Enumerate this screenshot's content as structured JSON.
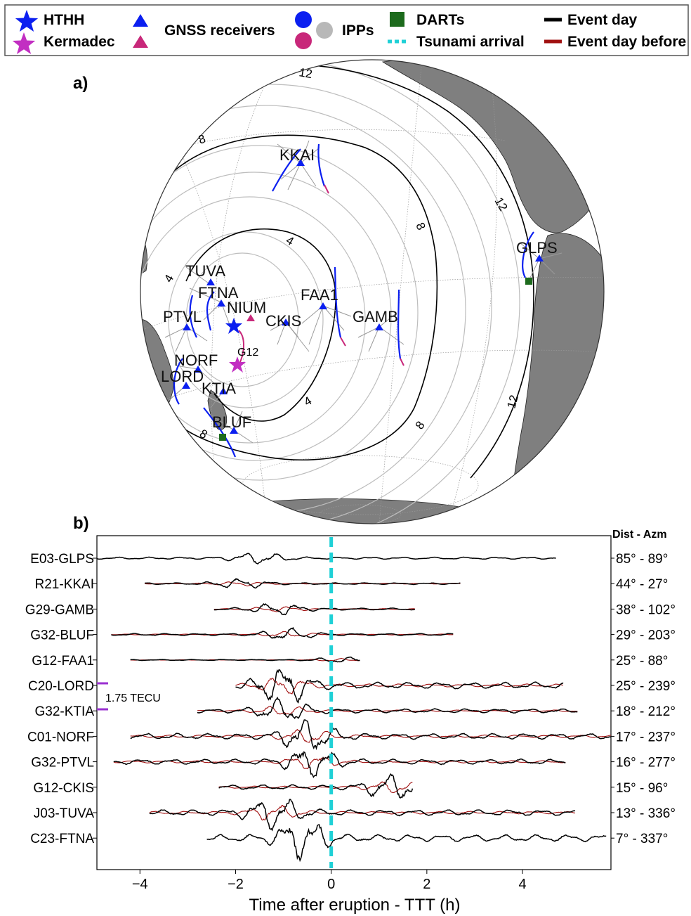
{
  "legend": {
    "items": [
      {
        "label": "HTHH",
        "marker": "star",
        "color": "#0b1ff0"
      },
      {
        "label": "Kermadec",
        "marker": "star",
        "color": "#c22fc2"
      },
      {
        "label": "GNSS receivers",
        "marker": "triangle",
        "colors": [
          "#0b1ff0",
          "#c8287a"
        ]
      },
      {
        "label": "IPPs",
        "marker": "circle",
        "colors": [
          "#0b1ff0",
          "#c8287a",
          "#b8b8b8"
        ]
      },
      {
        "label": "DARTs",
        "marker": "square",
        "color": "#1d6b1d"
      },
      {
        "label": "Tsunami arrival",
        "marker": "dashed-line",
        "color": "#1fd0d6"
      },
      {
        "label": "Event day",
        "marker": "line",
        "color": "#000000"
      },
      {
        "label": "Event day before",
        "marker": "line",
        "color": "#a01010"
      }
    ]
  },
  "panel_a": {
    "label": "a)",
    "contour_labels": [
      "12",
      "8",
      "12",
      "8",
      "4",
      "4",
      "4",
      "8",
      "12",
      "8"
    ],
    "stations": [
      "KKAI",
      "GLPS",
      "TUVA",
      "FTNA",
      "NIUM",
      "FAA1",
      "PTVL",
      "CKIS",
      "GAMB",
      "NORF",
      "LORD",
      "KTIA",
      "BLUF"
    ],
    "satellite_label": "G12",
    "colors": {
      "land": "#7f7f7f",
      "receiver": "#0b1ff0",
      "trace": "#0b1ff0",
      "contour": "#000000",
      "wavefront": "#b0b0b0",
      "dart": "#1d6b1d",
      "kermadec": "#c22fc2"
    }
  },
  "panel_b": {
    "label": "b)",
    "right_header": "Dist - Azm",
    "xlabel": "Time after eruption - TTT (h)",
    "scale_label": "1.75 TECU",
    "colors": {
      "event_day": "#000000",
      "day_before": "#a01010",
      "tsunami": "#1fd0d6",
      "scale_bar": "#9a30d0"
    }
  },
  "chart_data": {
    "type": "line",
    "title": "",
    "xlabel": "Time after eruption - TTT (h)",
    "ylabel": "",
    "xlim": [
      -4.9,
      5.85
    ],
    "xticks": [
      -4,
      -2,
      0,
      2,
      4
    ],
    "xtick_labels": [
      "−4",
      "−2",
      "0",
      "2",
      "4"
    ],
    "tsunami_arrival_x": 0,
    "series_names": [
      "Event day",
      "Event day before"
    ],
    "rows": [
      {
        "name": "E03-GLPS",
        "dist_azm": "85° - 89°",
        "start": -4.9,
        "end": 4.7,
        "amp": 0.3,
        "burst": -1.5,
        "day_before": false
      },
      {
        "name": "R21-KKAI",
        "dist_azm": "44° - 27°",
        "start": -3.9,
        "end": 2.7,
        "amp": 0.25,
        "burst": -1.9,
        "day_before": true
      },
      {
        "name": "G29-GAMB",
        "dist_azm": "38° - 102°",
        "start": -2.45,
        "end": 1.75,
        "amp": 0.3,
        "burst": -1.1,
        "day_before": true
      },
      {
        "name": "G32-BLUF",
        "dist_azm": "29° - 203°",
        "start": -4.6,
        "end": 2.55,
        "amp": 0.3,
        "burst": -0.9,
        "day_before": true
      },
      {
        "name": "G12-FAA1",
        "dist_azm": "25° - 88°",
        "start": -4.2,
        "end": 0.6,
        "amp": 0.15,
        "burst": 0.2,
        "day_before": true
      },
      {
        "name": "C20-LORD",
        "dist_azm": "25° - 239°",
        "start": -2.0,
        "end": 4.85,
        "amp": 0.95,
        "burst": -1.0,
        "day_before": true
      },
      {
        "name": "G32-KTIA",
        "dist_azm": "18° - 212°",
        "start": -2.8,
        "end": 5.15,
        "amp": 0.6,
        "burst": -1.0,
        "day_before": true
      },
      {
        "name": "C01-NORF",
        "dist_azm": "17° - 237°",
        "start": -4.2,
        "end": 5.85,
        "amp": 0.85,
        "burst": -0.5,
        "day_before": true
      },
      {
        "name": "G32-PTVL",
        "dist_azm": "16° - 277°",
        "start": -4.55,
        "end": 4.9,
        "amp": 0.75,
        "burst": -0.4,
        "day_before": true
      },
      {
        "name": "G12-CKIS",
        "dist_azm": "15° - 96°",
        "start": -2.35,
        "end": 1.7,
        "amp": 0.7,
        "burst": 1.3,
        "day_before": true
      },
      {
        "name": "J03-TUVA",
        "dist_azm": "13° - 336°",
        "start": -3.8,
        "end": 5.1,
        "amp": 0.85,
        "burst": -1.2,
        "day_before": true
      },
      {
        "name": "C23-FTNA",
        "dist_azm": "7° - 337°",
        "start": -2.6,
        "end": 5.75,
        "amp": 1.0,
        "burst": -0.6,
        "day_before": false
      }
    ]
  }
}
